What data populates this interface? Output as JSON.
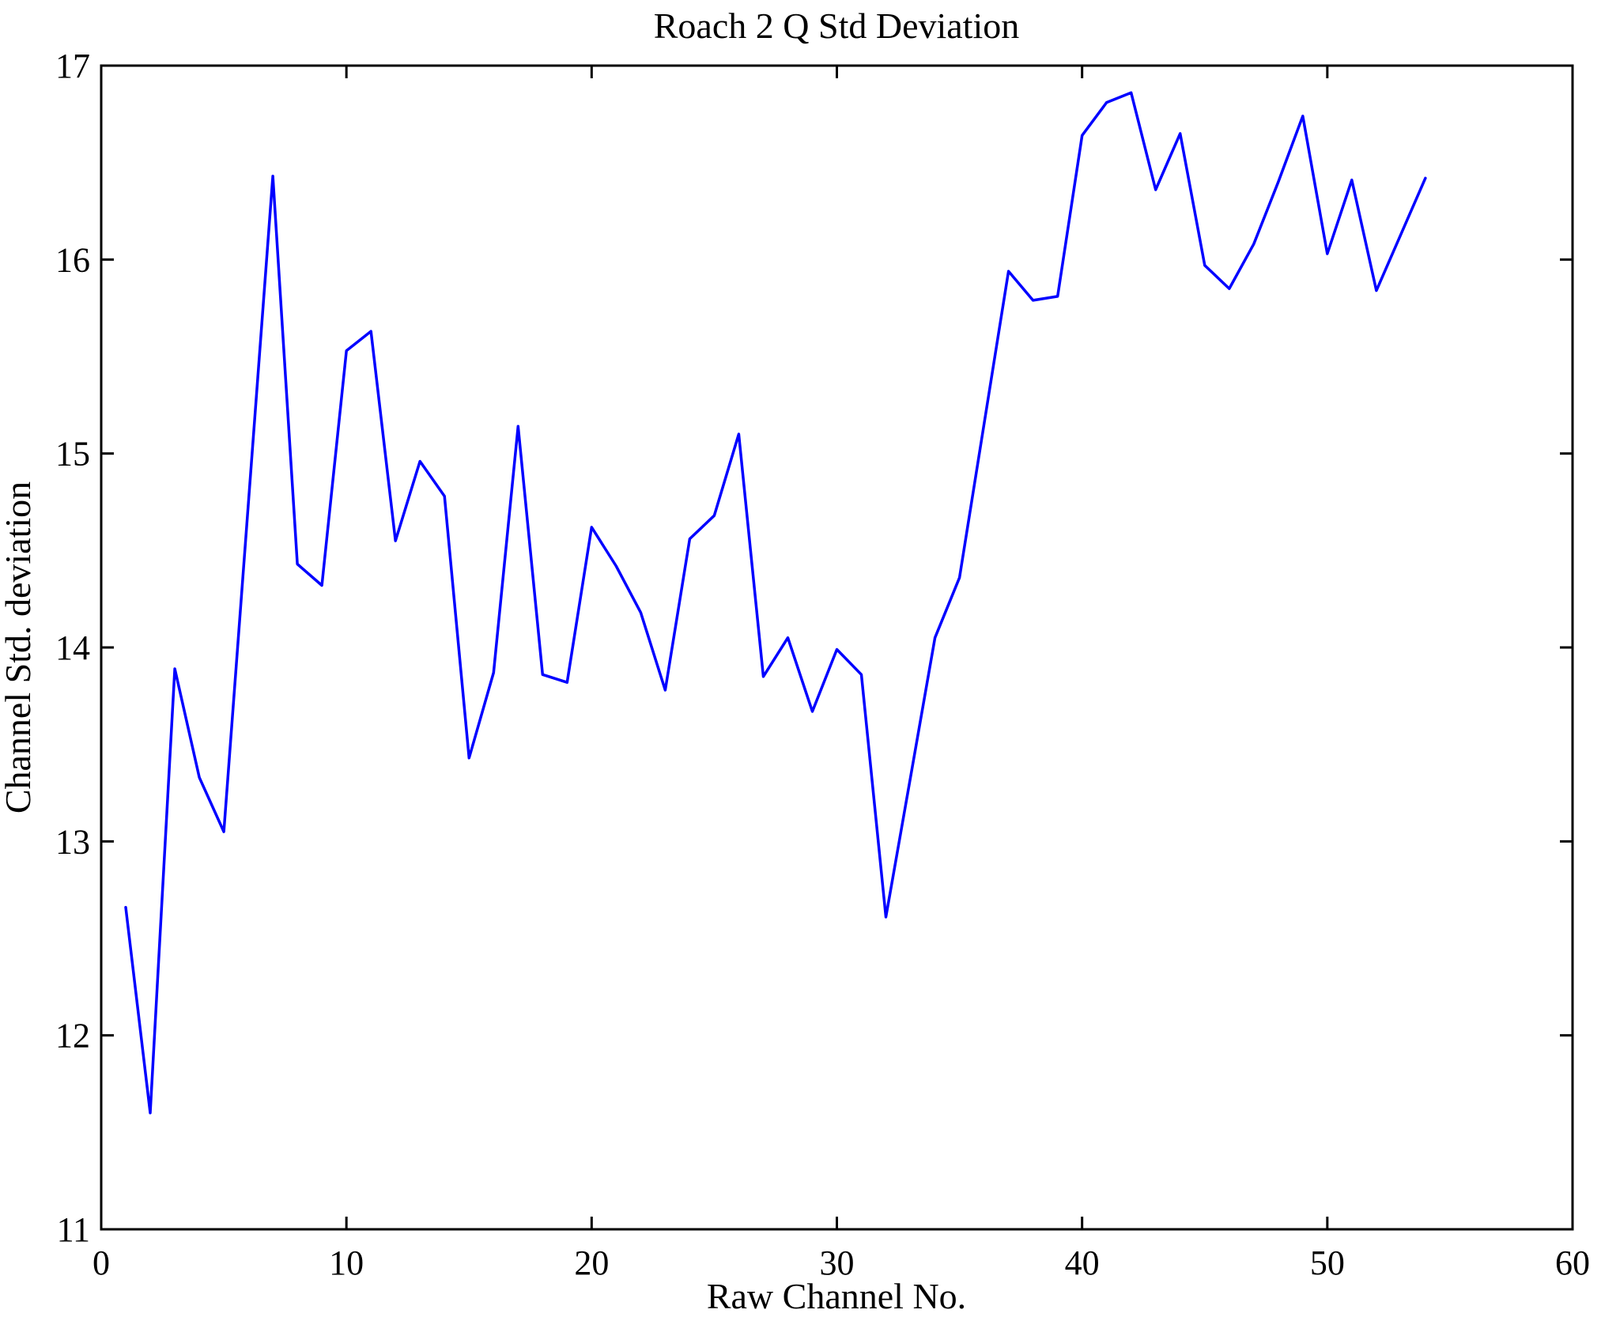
{
  "figure": {
    "background_color": "#ffffff",
    "axis_color": "#000000"
  },
  "chart_data": {
    "type": "line",
    "title": "Roach 2 Q Std Deviation",
    "xlabel": "Raw Channel No.",
    "ylabel": "Channel Std. deviation",
    "line_color": "#0000ff",
    "grid": false,
    "legend": null,
    "xlim": [
      0,
      60
    ],
    "ylim": [
      11,
      17
    ],
    "xticks": [
      0,
      10,
      20,
      30,
      40,
      50,
      60
    ],
    "yticks": [
      11,
      12,
      13,
      14,
      15,
      16,
      17
    ],
    "x": [
      1,
      2,
      3,
      4,
      5,
      6,
      7,
      8,
      9,
      10,
      11,
      12,
      13,
      14,
      15,
      16,
      17,
      18,
      19,
      20,
      21,
      22,
      23,
      24,
      25,
      26,
      27,
      28,
      29,
      30,
      31,
      32,
      33,
      34,
      35,
      36,
      37,
      38,
      39,
      40,
      41,
      42,
      43,
      44,
      45,
      46,
      47,
      48,
      49,
      50,
      51,
      52,
      53,
      54
    ],
    "y": [
      12.66,
      11.6,
      13.89,
      13.33,
      13.05,
      14.74,
      16.43,
      14.43,
      14.32,
      15.53,
      15.63,
      14.55,
      14.96,
      14.78,
      13.43,
      13.87,
      15.14,
      13.86,
      13.82,
      14.62,
      14.42,
      14.18,
      13.78,
      14.56,
      14.68,
      15.1,
      13.85,
      14.05,
      13.67,
      13.99,
      13.86,
      12.61,
      13.33,
      14.05,
      14.36,
      15.15,
      15.94,
      15.79,
      15.81,
      16.64,
      16.81,
      16.86,
      16.36,
      16.65,
      15.97,
      15.85,
      16.08,
      16.4,
      16.74,
      16.03,
      16.41,
      15.84,
      16.13,
      16.42
    ]
  }
}
